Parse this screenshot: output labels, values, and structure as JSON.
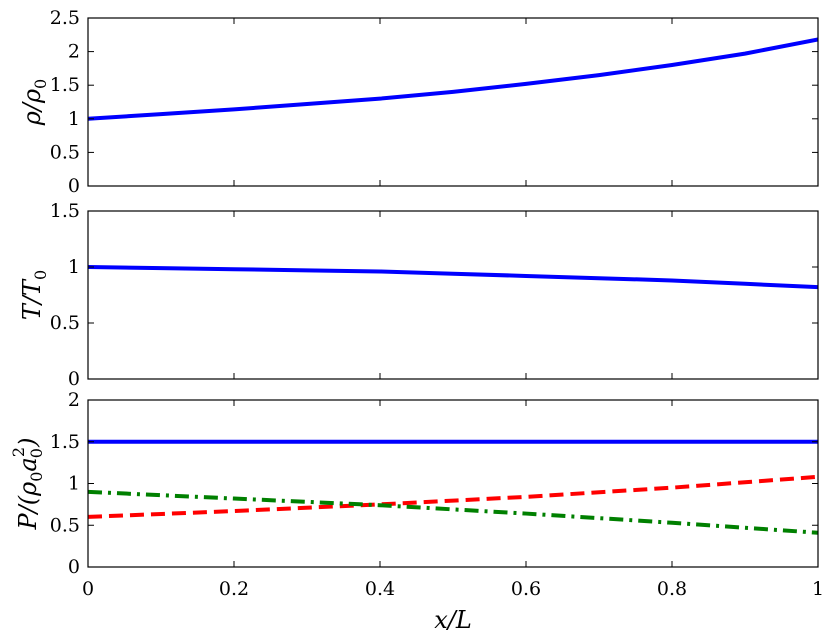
{
  "chart_data": [
    {
      "type": "line",
      "ylabel": "ρ/ρ0",
      "ylabel_parts": {
        "main": "ρ/ρ",
        "sub": "0"
      },
      "xlim": [
        0,
        1
      ],
      "ylim": [
        0,
        2.5
      ],
      "yticks": [
        "0",
        "0.5",
        "1",
        "1.5",
        "2",
        "2.5"
      ],
      "yticks_values": [
        0,
        0.5,
        1,
        1.5,
        2,
        2.5
      ],
      "series": [
        {
          "color": "#0000ff",
          "dash": "solid",
          "x": [
            0,
            0.1,
            0.2,
            0.3,
            0.4,
            0.5,
            0.6,
            0.7,
            0.8,
            0.9,
            1.0
          ],
          "y": [
            1.0,
            1.07,
            1.14,
            1.22,
            1.3,
            1.4,
            1.52,
            1.65,
            1.8,
            1.97,
            2.18
          ]
        }
      ]
    },
    {
      "type": "line",
      "ylabel": "T/T0",
      "ylabel_parts": {
        "main": "T/T",
        "sub": "0"
      },
      "xlim": [
        0,
        1
      ],
      "ylim": [
        0,
        1.5
      ],
      "yticks": [
        "0",
        "0.5",
        "1",
        "1.5"
      ],
      "yticks_values": [
        0,
        0.5,
        1,
        1.5
      ],
      "series": [
        {
          "color": "#0000ff",
          "dash": "solid",
          "x": [
            0,
            0.1,
            0.2,
            0.3,
            0.4,
            0.5,
            0.6,
            0.7,
            0.8,
            0.9,
            1.0
          ],
          "y": [
            1.0,
            0.99,
            0.98,
            0.97,
            0.96,
            0.94,
            0.92,
            0.9,
            0.88,
            0.85,
            0.82
          ]
        }
      ]
    },
    {
      "type": "line",
      "ylabel": "P/(ρ0a0²)",
      "ylabel_parts": {
        "main": "P/(ρ",
        "sub1": "0",
        "mid": "a",
        "sub2": "0",
        "sup": "2",
        "end": ")"
      },
      "xlim": [
        0,
        1
      ],
      "ylim": [
        0,
        2
      ],
      "xlabel": "x/L",
      "xticks": [
        "0",
        "0.2",
        "0.4",
        "0.6",
        "0.8",
        "1"
      ],
      "xticks_values": [
        0,
        0.2,
        0.4,
        0.6,
        0.8,
        1
      ],
      "yticks": [
        "0",
        "0.5",
        "1",
        "1.5",
        "2"
      ],
      "yticks_values": [
        0,
        0.5,
        1,
        1.5,
        2
      ],
      "series": [
        {
          "color": "#0000ff",
          "dash": "solid",
          "x": [
            0,
            1
          ],
          "y": [
            1.5,
            1.5
          ]
        },
        {
          "color": "#ff0000",
          "dash": "dashed",
          "x": [
            0,
            0.2,
            0.4,
            0.6,
            0.8,
            1.0
          ],
          "y": [
            0.6,
            0.67,
            0.75,
            0.84,
            0.95,
            1.08
          ]
        },
        {
          "color": "#008000",
          "dash": "dashdot",
          "x": [
            0,
            0.2,
            0.4,
            0.6,
            0.8,
            1.0
          ],
          "y": [
            0.9,
            0.82,
            0.74,
            0.64,
            0.53,
            0.41
          ]
        }
      ]
    }
  ]
}
